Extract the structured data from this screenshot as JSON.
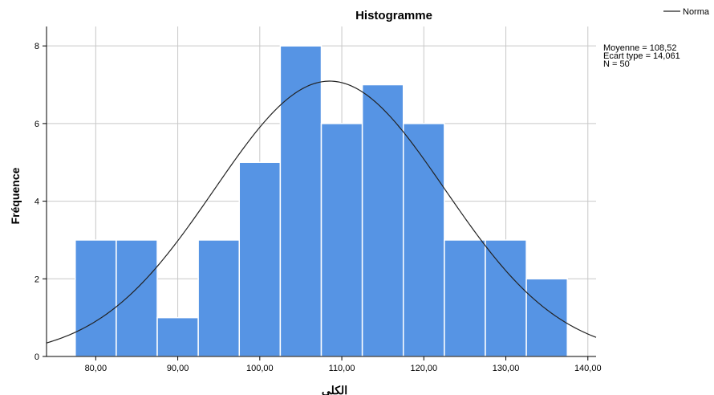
{
  "chart_data": {
    "type": "bar",
    "title": "Histogramme",
    "xlabel": "الكلي",
    "ylabel": "Fréquence",
    "xlim": [
      74,
      141
    ],
    "ylim": [
      0,
      8.5
    ],
    "x_ticks": [
      80,
      90,
      100,
      110,
      120,
      130,
      140
    ],
    "x_tick_labels": [
      "80,00",
      "90,00",
      "100,00",
      "110,00",
      "120,00",
      "130,00",
      "140,00"
    ],
    "y_ticks": [
      0,
      2,
      4,
      6,
      8
    ],
    "y_tick_labels": [
      "0",
      "2",
      "4",
      "6",
      "8"
    ],
    "bin_width": 5,
    "bins": [
      {
        "start": 77.5,
        "end": 82.5,
        "count": 3
      },
      {
        "start": 82.5,
        "end": 87.5,
        "count": 3
      },
      {
        "start": 87.5,
        "end": 92.5,
        "count": 1
      },
      {
        "start": 92.5,
        "end": 97.5,
        "count": 3
      },
      {
        "start": 97.5,
        "end": 102.5,
        "count": 5
      },
      {
        "start": 102.5,
        "end": 107.5,
        "count": 8
      },
      {
        "start": 107.5,
        "end": 112.5,
        "count": 6
      },
      {
        "start": 112.5,
        "end": 117.5,
        "count": 7
      },
      {
        "start": 117.5,
        "end": 122.5,
        "count": 6
      },
      {
        "start": 122.5,
        "end": 127.5,
        "count": 3
      },
      {
        "start": 127.5,
        "end": 132.5,
        "count": 3
      },
      {
        "start": 132.5,
        "end": 137.5,
        "count": 2
      }
    ],
    "normal_curve": {
      "mean": 108.52,
      "std": 14.061,
      "n": 50
    },
    "stats_text": [
      "Moyenne = 108,52",
      "Ecart type = 14,061",
      "N = 50"
    ],
    "legend": {
      "entries": [
        "Norma"
      ],
      "position": "top-right"
    },
    "grid": true,
    "colors": {
      "bar": "#5694e4",
      "bar_edge": "#ffffff",
      "curve": "#222222",
      "grid": "#c8c8c8",
      "axis": "#000000"
    }
  }
}
